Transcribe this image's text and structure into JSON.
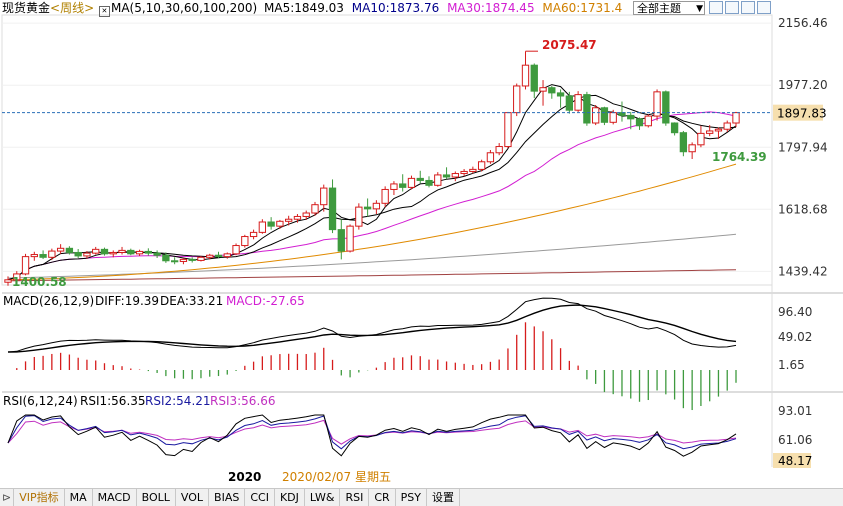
{
  "header": {
    "instrument": "现货黄金",
    "period": "<周线>",
    "ma_label": "MA(5,10,30,60,100,200)",
    "ma5": "MA5:1849.03",
    "ma10": "MA10:1873.76",
    "ma30": "MA30:1874.45",
    "ma60": "MA60:1731.4",
    "theme_select": "全部主题"
  },
  "colors": {
    "up": "#d61c1c",
    "down": "#3e9a3e",
    "ma5": "#000000",
    "ma10": "#000000",
    "ma30": "#d21ed2",
    "ma60": "#e08a00",
    "ma100": "#9a9a9a",
    "ma200": "#a04040",
    "diff": "#000000",
    "dea": "#000000",
    "rsi1": "#000000",
    "rsi2": "#1a1aa0",
    "rsi3": "#c030c0",
    "price_tag": "#f6dfae"
  },
  "price_axis": [
    "2156.46",
    "1977.20",
    "1797.94",
    "1618.68",
    "1439.42"
  ],
  "current_price": "1897.83",
  "annotations": {
    "high": "2075.47",
    "low": "1400.58",
    "recent_low": "1764.39"
  },
  "macd": {
    "label": "MACD(26,12,9)",
    "diff": "DIFF:19.39",
    "dea": "DEA:33.21",
    "macd": "MACD:-27.65",
    "axis": [
      "96.40",
      "49.02",
      "1.65"
    ]
  },
  "rsi": {
    "label": "RSI(6,12,24)",
    "rsi1": "RSI1:56.35",
    "rsi2": "RSI2:54.21",
    "rsi3": "RSI3:56.66",
    "axis": [
      "93.01",
      "61.06",
      "48.17"
    ]
  },
  "time_axis": {
    "year": "2020",
    "cursor_date": "2020/02/07 星期五"
  },
  "toolbar": [
    "VIP指标",
    "MA",
    "MACD",
    "BOLL",
    "VOL",
    "BIAS",
    "CCI",
    "KDJ",
    "LW&",
    "RSI",
    "CR",
    "PSY",
    "设置"
  ],
  "chart_data": {
    "type": "candlestick",
    "timeframe": "weekly",
    "ylim": [
      1400,
      2180
    ],
    "candles": [
      [
        1408,
        1425,
        1398,
        1415
      ],
      [
        1415,
        1440,
        1412,
        1432
      ],
      [
        1432,
        1490,
        1428,
        1482
      ],
      [
        1482,
        1496,
        1470,
        1488
      ],
      [
        1488,
        1500,
        1475,
        1480
      ],
      [
        1480,
        1505,
        1472,
        1498
      ],
      [
        1498,
        1518,
        1490,
        1506
      ],
      [
        1506,
        1512,
        1488,
        1494
      ],
      [
        1494,
        1504,
        1478,
        1484
      ],
      [
        1484,
        1498,
        1476,
        1492
      ],
      [
        1492,
        1510,
        1488,
        1503
      ],
      [
        1503,
        1508,
        1485,
        1490
      ],
      [
        1490,
        1500,
        1480,
        1494
      ],
      [
        1494,
        1510,
        1488,
        1500
      ],
      [
        1500,
        1505,
        1486,
        1490
      ],
      [
        1490,
        1502,
        1484,
        1497
      ],
      [
        1497,
        1506,
        1485,
        1492
      ],
      [
        1492,
        1500,
        1478,
        1486
      ],
      [
        1486,
        1494,
        1464,
        1470
      ],
      [
        1470,
        1480,
        1460,
        1468
      ],
      [
        1468,
        1478,
        1460,
        1474
      ],
      [
        1474,
        1480,
        1465,
        1471
      ],
      [
        1471,
        1484,
        1468,
        1480
      ],
      [
        1480,
        1490,
        1474,
        1486
      ],
      [
        1486,
        1496,
        1478,
        1482
      ],
      [
        1482,
        1494,
        1476,
        1490
      ],
      [
        1490,
        1520,
        1486,
        1514
      ],
      [
        1514,
        1545,
        1508,
        1540
      ],
      [
        1540,
        1560,
        1532,
        1552
      ],
      [
        1552,
        1590,
        1548,
        1582
      ],
      [
        1582,
        1596,
        1560,
        1570
      ],
      [
        1570,
        1588,
        1562,
        1584
      ],
      [
        1584,
        1600,
        1572,
        1590
      ],
      [
        1590,
        1605,
        1580,
        1598
      ],
      [
        1598,
        1615,
        1588,
        1608
      ],
      [
        1608,
        1640,
        1600,
        1632
      ],
      [
        1632,
        1690,
        1612,
        1680
      ],
      [
        1680,
        1705,
        1550,
        1560
      ],
      [
        1560,
        1590,
        1474,
        1498
      ],
      [
        1498,
        1575,
        1494,
        1570
      ],
      [
        1570,
        1636,
        1560,
        1625
      ],
      [
        1625,
        1650,
        1598,
        1620
      ],
      [
        1620,
        1645,
        1605,
        1636
      ],
      [
        1636,
        1685,
        1625,
        1676
      ],
      [
        1676,
        1700,
        1660,
        1692
      ],
      [
        1692,
        1720,
        1670,
        1682
      ],
      [
        1682,
        1716,
        1676,
        1708
      ],
      [
        1708,
        1730,
        1694,
        1702
      ],
      [
        1702,
        1714,
        1682,
        1688
      ],
      [
        1688,
        1726,
        1684,
        1718
      ],
      [
        1718,
        1740,
        1706,
        1712
      ],
      [
        1712,
        1728,
        1700,
        1722
      ],
      [
        1722,
        1735,
        1714,
        1728
      ],
      [
        1728,
        1742,
        1722,
        1734
      ],
      [
        1734,
        1762,
        1728,
        1756
      ],
      [
        1756,
        1790,
        1750,
        1782
      ],
      [
        1782,
        1810,
        1775,
        1800
      ],
      [
        1800,
        1900,
        1795,
        1898
      ],
      [
        1898,
        1982,
        1888,
        1975
      ],
      [
        1975,
        2075,
        1965,
        2035
      ],
      [
        2035,
        2040,
        1940,
        1960
      ],
      [
        1960,
        1992,
        1918,
        1970
      ],
      [
        1970,
        1975,
        1938,
        1955
      ],
      [
        1955,
        1965,
        1912,
        1946
      ],
      [
        1946,
        1958,
        1895,
        1905
      ],
      [
        1905,
        1960,
        1900,
        1950
      ],
      [
        1950,
        1958,
        1860,
        1868
      ],
      [
        1868,
        1920,
        1862,
        1912
      ],
      [
        1912,
        1915,
        1862,
        1870
      ],
      [
        1870,
        1906,
        1864,
        1898
      ],
      [
        1898,
        1930,
        1872,
        1890
      ],
      [
        1890,
        1900,
        1850,
        1880
      ],
      [
        1880,
        1884,
        1848,
        1860
      ],
      [
        1860,
        1893,
        1855,
        1888
      ],
      [
        1888,
        1965,
        1875,
        1958
      ],
      [
        1958,
        1962,
        1860,
        1868
      ],
      [
        1868,
        1870,
        1832,
        1840
      ],
      [
        1840,
        1845,
        1772,
        1785
      ],
      [
        1785,
        1812,
        1764,
        1805
      ],
      [
        1805,
        1860,
        1798,
        1838
      ],
      [
        1838,
        1862,
        1830,
        1845
      ],
      [
        1845,
        1855,
        1822,
        1850
      ],
      [
        1850,
        1875,
        1842,
        1868
      ],
      [
        1868,
        1900,
        1856,
        1898
      ]
    ]
  }
}
